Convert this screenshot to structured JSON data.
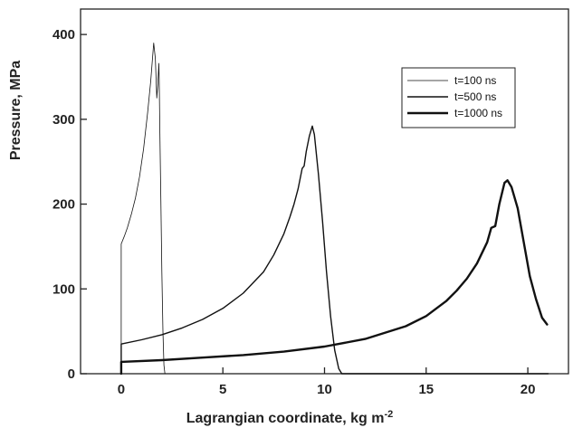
{
  "chart_data": {
    "type": "line",
    "xlabel": "Lagrangian coordinate,  kg m",
    "xlabel_sup": "-2",
    "ylabel": "Pressure,  MPa",
    "xlim": [
      -2,
      22
    ],
    "ylim": [
      0,
      430
    ],
    "xticks": [
      0,
      5,
      10,
      15,
      20
    ],
    "yticks": [
      0,
      100,
      200,
      300,
      400
    ],
    "grid": false,
    "legend_position": "top-right",
    "series": [
      {
        "name": "t=100 ns",
        "line_width": 0.8,
        "points": [
          [
            0,
            0
          ],
          [
            0,
            153
          ],
          [
            0.15,
            162
          ],
          [
            0.3,
            172
          ],
          [
            0.5,
            188
          ],
          [
            0.7,
            207
          ],
          [
            0.9,
            232
          ],
          [
            1.1,
            265
          ],
          [
            1.3,
            308
          ],
          [
            1.45,
            345
          ],
          [
            1.55,
            375
          ],
          [
            1.6,
            390
          ],
          [
            1.68,
            372
          ],
          [
            1.75,
            325
          ],
          [
            1.8,
            340
          ],
          [
            1.85,
            366
          ],
          [
            1.87,
            345
          ],
          [
            1.9,
            285
          ],
          [
            1.95,
            205
          ],
          [
            2.0,
            120
          ],
          [
            2.05,
            50
          ],
          [
            2.1,
            10
          ],
          [
            2.15,
            0
          ]
        ]
      },
      {
        "name": "t=500 ns",
        "line_width": 1.4,
        "points": [
          [
            0,
            0
          ],
          [
            0,
            35
          ],
          [
            1,
            40
          ],
          [
            2,
            46
          ],
          [
            3,
            54
          ],
          [
            4,
            64
          ],
          [
            5,
            77
          ],
          [
            6,
            95
          ],
          [
            7,
            120
          ],
          [
            7.5,
            140
          ],
          [
            8,
            165
          ],
          [
            8.3,
            185
          ],
          [
            8.5,
            200
          ],
          [
            8.7,
            218
          ],
          [
            8.9,
            242
          ],
          [
            9.0,
            245
          ],
          [
            9.1,
            262
          ],
          [
            9.25,
            280
          ],
          [
            9.4,
            292
          ],
          [
            9.5,
            282
          ],
          [
            9.7,
            235
          ],
          [
            9.9,
            180
          ],
          [
            10.1,
            120
          ],
          [
            10.3,
            68
          ],
          [
            10.5,
            28
          ],
          [
            10.7,
            6
          ],
          [
            10.85,
            0
          ],
          [
            12,
            0
          ],
          [
            16,
            0
          ],
          [
            21,
            0
          ]
        ]
      },
      {
        "name": "t=1000 ns",
        "line_width": 2.4,
        "points": [
          [
            0,
            0
          ],
          [
            0,
            14
          ],
          [
            2,
            16
          ],
          [
            4,
            19
          ],
          [
            6,
            22
          ],
          [
            8,
            26
          ],
          [
            10,
            32
          ],
          [
            12,
            41
          ],
          [
            14,
            56
          ],
          [
            15,
            68
          ],
          [
            16,
            86
          ],
          [
            16.5,
            98
          ],
          [
            17,
            112
          ],
          [
            17.5,
            130
          ],
          [
            18,
            155
          ],
          [
            18.2,
            172
          ],
          [
            18.4,
            174
          ],
          [
            18.6,
            200
          ],
          [
            18.85,
            225
          ],
          [
            19.0,
            228
          ],
          [
            19.2,
            220
          ],
          [
            19.5,
            195
          ],
          [
            19.8,
            155
          ],
          [
            20.1,
            115
          ],
          [
            20.4,
            88
          ],
          [
            20.7,
            66
          ],
          [
            20.95,
            58
          ]
        ]
      }
    ]
  }
}
